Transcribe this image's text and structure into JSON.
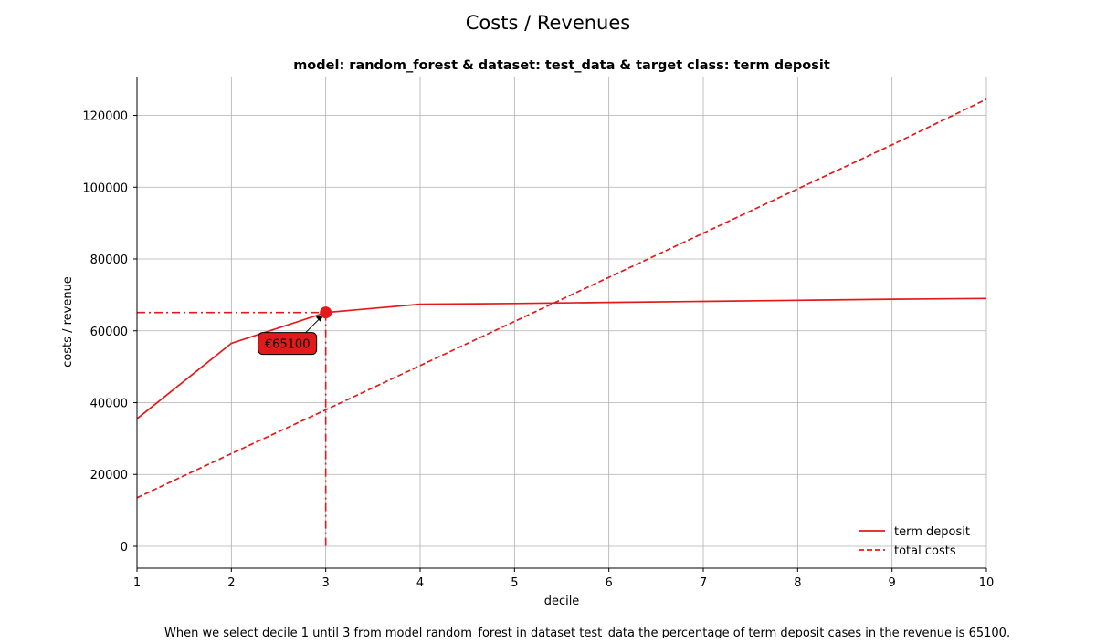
{
  "figure": {
    "suptitle": "Costs / Revenues",
    "caption": "When we select decile 1 until 3 from model random_forest in dataset test_data the percentage of term deposit cases in the revenue is 65100."
  },
  "chart_data": {
    "type": "line",
    "title": "model: random_forest & dataset: test_data & target class: term deposit",
    "xlabel": "decile",
    "ylabel": "costs / revenue",
    "xlim": [
      1,
      10
    ],
    "ylim": [
      -6100,
      130800
    ],
    "xticks": [
      1,
      2,
      3,
      4,
      5,
      6,
      7,
      8,
      9,
      10
    ],
    "yticks": [
      0,
      20000,
      40000,
      60000,
      80000,
      100000,
      120000
    ],
    "grid": true,
    "legend_position": "lower-right",
    "series": [
      {
        "name": "term deposit",
        "style": "solid",
        "color": "#e31a1c",
        "x": [
          1,
          2,
          3,
          4,
          5,
          6,
          7,
          8,
          9,
          10
        ],
        "y": [
          35500,
          56500,
          65100,
          67400,
          67600,
          67900,
          68200,
          68500,
          68800,
          69000
        ]
      },
      {
        "name": "total costs",
        "style": "dashed",
        "color": "#e31a1c",
        "x": [
          1,
          2,
          3,
          4,
          5,
          6,
          7,
          8,
          9,
          10
        ],
        "y": [
          13500,
          25800,
          38000,
          50300,
          62600,
          74900,
          87200,
          99500,
          111800,
          124500
        ]
      }
    ],
    "highlight": {
      "x": 3,
      "y": 65100,
      "label": "€65100",
      "color": "#e31a1c"
    }
  }
}
